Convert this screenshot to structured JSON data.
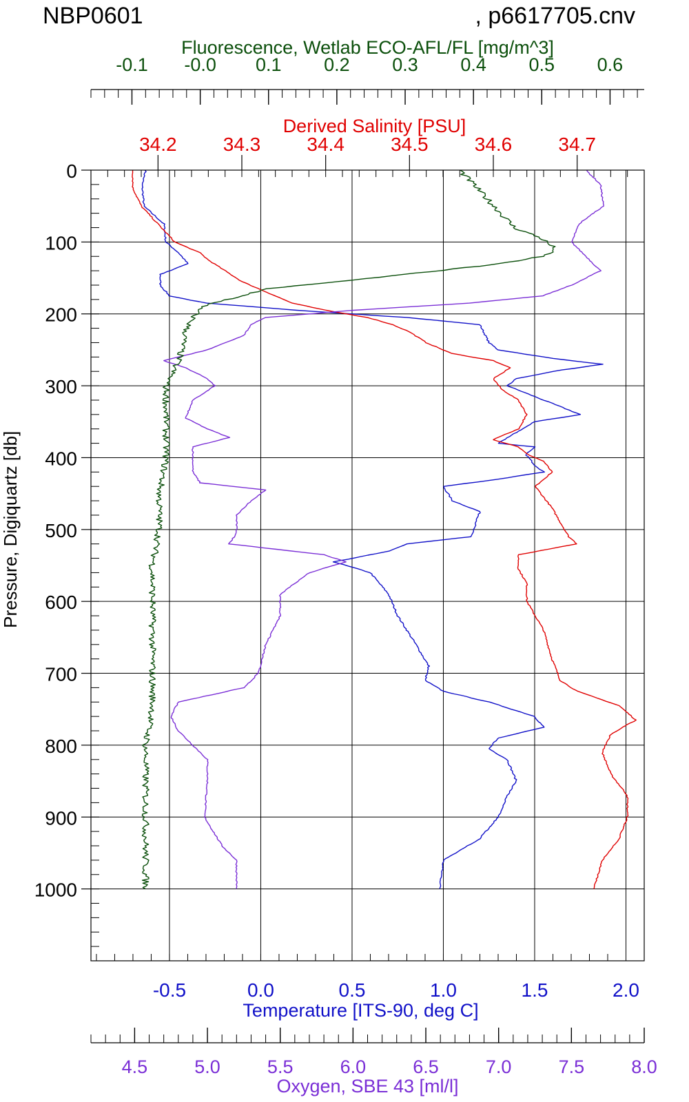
{
  "header": {
    "cast_id": "NBP0601",
    "file_name": ", p6617705.cnv"
  },
  "colors": {
    "temperature": "#1010c8",
    "salinity": "#e00000",
    "oxygen": "#7a2ed6",
    "fluorescence": "#0b4f0b",
    "axis": "#000000"
  },
  "chart_data": {
    "type": "line",
    "grid": true,
    "pressure_axis": {
      "label": "Pressure, Digiquartz [db]",
      "ticks": [
        "0",
        "100",
        "200",
        "300",
        "400",
        "500",
        "600",
        "700",
        "800",
        "900",
        "1000"
      ],
      "range": [
        0,
        1100
      ],
      "reversed": true
    },
    "axes": {
      "fluorescence": {
        "label": "Fluorescence, Wetlab ECO-AFL/FL [mg/m^3]",
        "ticks": [
          "-0.1",
          "-0.0",
          "0.1",
          "0.2",
          "0.3",
          "0.4",
          "0.5",
          "0.6"
        ],
        "tick_values": [
          -0.1,
          0.0,
          0.1,
          0.2,
          0.3,
          0.4,
          0.5,
          0.6
        ],
        "range": [
          -0.16,
          0.65
        ],
        "position": "top"
      },
      "salinity": {
        "label": "Derived Salinity [PSU]",
        "ticks": [
          "34.2",
          "34.3",
          "34.4",
          "34.5",
          "34.6",
          "34.7"
        ],
        "tick_values": [
          34.2,
          34.3,
          34.4,
          34.5,
          34.6,
          34.7
        ],
        "range": [
          34.12,
          34.78
        ],
        "position": "top"
      },
      "temperature": {
        "label": "Temperature [ITS-90, deg C]",
        "ticks": [
          "-0.5",
          "0.0",
          "0.5",
          "1.0",
          "1.5",
          "2.0"
        ],
        "tick_values": [
          -0.5,
          0.0,
          0.5,
          1.0,
          1.5,
          2.0
        ],
        "range": [
          -0.93,
          2.1
        ],
        "position": "bottom"
      },
      "oxygen": {
        "label": "Oxygen, SBE 43 [ml/l]",
        "ticks": [
          "4.5",
          "5.0",
          "5.5",
          "6.0",
          "6.5",
          "7.0",
          "7.5",
          "8.0"
        ],
        "tick_values": [
          4.5,
          5.0,
          5.5,
          6.0,
          6.5,
          7.0,
          7.5,
          8.0
        ],
        "range": [
          4.2,
          8.0
        ],
        "position": "bottom"
      }
    },
    "series": [
      {
        "name": "Temperature [ITS-90, deg C]",
        "axis": "temperature",
        "points": [
          [
            0,
            -0.63
          ],
          [
            20,
            -0.65
          ],
          [
            50,
            -0.64
          ],
          [
            75,
            -0.53
          ],
          [
            100,
            -0.52
          ],
          [
            115,
            -0.45
          ],
          [
            130,
            -0.4
          ],
          [
            145,
            -0.55
          ],
          [
            160,
            -0.55
          ],
          [
            175,
            -0.5
          ],
          [
            185,
            -0.3
          ],
          [
            195,
            0.2
          ],
          [
            205,
            0.8
          ],
          [
            215,
            1.2
          ],
          [
            225,
            1.22
          ],
          [
            240,
            1.25
          ],
          [
            250,
            1.3
          ],
          [
            262,
            1.6
          ],
          [
            270,
            1.87
          ],
          [
            280,
            1.6
          ],
          [
            290,
            1.4
          ],
          [
            300,
            1.35
          ],
          [
            315,
            1.5
          ],
          [
            330,
            1.65
          ],
          [
            340,
            1.75
          ],
          [
            350,
            1.5
          ],
          [
            365,
            1.4
          ],
          [
            380,
            1.3
          ],
          [
            385,
            1.5
          ],
          [
            395,
            1.45
          ],
          [
            410,
            1.5
          ],
          [
            420,
            1.55
          ],
          [
            430,
            1.3
          ],
          [
            440,
            1.0
          ],
          [
            460,
            1.05
          ],
          [
            475,
            1.2
          ],
          [
            490,
            1.18
          ],
          [
            510,
            1.15
          ],
          [
            520,
            0.8
          ],
          [
            530,
            0.7
          ],
          [
            545,
            0.4
          ],
          [
            560,
            0.6
          ],
          [
            590,
            0.7
          ],
          [
            620,
            0.75
          ],
          [
            660,
            0.85
          ],
          [
            690,
            0.92
          ],
          [
            710,
            0.9
          ],
          [
            725,
            1.0
          ],
          [
            740,
            1.25
          ],
          [
            760,
            1.5
          ],
          [
            775,
            1.55
          ],
          [
            790,
            1.3
          ],
          [
            805,
            1.25
          ],
          [
            820,
            1.35
          ],
          [
            850,
            1.4
          ],
          [
            870,
            1.35
          ],
          [
            900,
            1.3
          ],
          [
            930,
            1.2
          ],
          [
            960,
            1.0
          ],
          [
            1000,
            0.98
          ]
        ]
      },
      {
        "name": "Derived Salinity [PSU]",
        "axis": "salinity",
        "points": [
          [
            0,
            34.17
          ],
          [
            25,
            34.17
          ],
          [
            50,
            34.18
          ],
          [
            75,
            34.2
          ],
          [
            100,
            34.22
          ],
          [
            115,
            34.25
          ],
          [
            125,
            34.26
          ],
          [
            140,
            34.28
          ],
          [
            155,
            34.3
          ],
          [
            170,
            34.33
          ],
          [
            185,
            34.36
          ],
          [
            195,
            34.4
          ],
          [
            205,
            34.45
          ],
          [
            215,
            34.48
          ],
          [
            225,
            34.5
          ],
          [
            240,
            34.52
          ],
          [
            255,
            34.55
          ],
          [
            265,
            34.6
          ],
          [
            275,
            34.62
          ],
          [
            290,
            34.6
          ],
          [
            305,
            34.61
          ],
          [
            320,
            34.63
          ],
          [
            340,
            34.64
          ],
          [
            360,
            34.63
          ],
          [
            375,
            34.6
          ],
          [
            385,
            34.63
          ],
          [
            395,
            34.64
          ],
          [
            405,
            34.66
          ],
          [
            420,
            34.67
          ],
          [
            430,
            34.66
          ],
          [
            440,
            34.65
          ],
          [
            455,
            34.66
          ],
          [
            470,
            34.67
          ],
          [
            490,
            34.68
          ],
          [
            510,
            34.69
          ],
          [
            520,
            34.7
          ],
          [
            535,
            34.63
          ],
          [
            555,
            34.63
          ],
          [
            575,
            34.64
          ],
          [
            600,
            34.64
          ],
          [
            640,
            34.66
          ],
          [
            680,
            34.67
          ],
          [
            710,
            34.68
          ],
          [
            725,
            34.7
          ],
          [
            745,
            34.75
          ],
          [
            765,
            34.77
          ],
          [
            785,
            34.74
          ],
          [
            810,
            34.73
          ],
          [
            840,
            34.74
          ],
          [
            870,
            34.76
          ],
          [
            900,
            34.76
          ],
          [
            930,
            34.75
          ],
          [
            960,
            34.73
          ],
          [
            1000,
            34.72
          ]
        ]
      },
      {
        "name": "Oxygen, SBE 43 [ml/l]",
        "axis": "oxygen",
        "points": [
          [
            0,
            7.6
          ],
          [
            20,
            7.7
          ],
          [
            50,
            7.72
          ],
          [
            75,
            7.55
          ],
          [
            100,
            7.5
          ],
          [
            120,
            7.6
          ],
          [
            140,
            7.7
          ],
          [
            160,
            7.5
          ],
          [
            175,
            7.3
          ],
          [
            185,
            6.8
          ],
          [
            195,
            6.0
          ],
          [
            205,
            5.4
          ],
          [
            215,
            5.3
          ],
          [
            230,
            5.25
          ],
          [
            250,
            5.0
          ],
          [
            265,
            4.7
          ],
          [
            275,
            4.85
          ],
          [
            290,
            5.0
          ],
          [
            300,
            5.05
          ],
          [
            320,
            4.9
          ],
          [
            345,
            4.85
          ],
          [
            360,
            5.0
          ],
          [
            372,
            5.15
          ],
          [
            385,
            4.9
          ],
          [
            400,
            4.9
          ],
          [
            420,
            4.9
          ],
          [
            435,
            4.95
          ],
          [
            445,
            5.4
          ],
          [
            460,
            5.3
          ],
          [
            480,
            5.2
          ],
          [
            505,
            5.2
          ],
          [
            520,
            5.15
          ],
          [
            535,
            5.8
          ],
          [
            545,
            5.95
          ],
          [
            560,
            5.7
          ],
          [
            590,
            5.5
          ],
          [
            620,
            5.5
          ],
          [
            660,
            5.4
          ],
          [
            700,
            5.35
          ],
          [
            720,
            5.25
          ],
          [
            740,
            4.8
          ],
          [
            760,
            4.75
          ],
          [
            780,
            4.8
          ],
          [
            800,
            4.9
          ],
          [
            820,
            5.0
          ],
          [
            850,
            5.0
          ],
          [
            900,
            4.98
          ],
          [
            940,
            5.1
          ],
          [
            960,
            5.2
          ],
          [
            1000,
            5.2
          ]
        ]
      },
      {
        "name": "Fluorescence, Wetlab ECO-AFL/FL [mg/m^3]",
        "axis": "fluorescence",
        "points": [
          [
            0,
            0.38
          ],
          [
            20,
            0.4
          ],
          [
            40,
            0.42
          ],
          [
            60,
            0.44
          ],
          [
            80,
            0.46
          ],
          [
            95,
            0.5
          ],
          [
            110,
            0.52
          ],
          [
            120,
            0.5
          ],
          [
            130,
            0.44
          ],
          [
            145,
            0.3
          ],
          [
            155,
            0.2
          ],
          [
            165,
            0.1
          ],
          [
            175,
            0.06
          ],
          [
            190,
            0.0
          ],
          [
            220,
            -0.02
          ],
          [
            260,
            -0.03
          ],
          [
            300,
            -0.05
          ],
          [
            350,
            -0.05
          ],
          [
            400,
            -0.05
          ],
          [
            450,
            -0.06
          ],
          [
            500,
            -0.06
          ],
          [
            550,
            -0.07
          ],
          [
            600,
            -0.07
          ],
          [
            650,
            -0.07
          ],
          [
            700,
            -0.07
          ],
          [
            750,
            -0.07
          ],
          [
            800,
            -0.08
          ],
          [
            850,
            -0.08
          ],
          [
            900,
            -0.08
          ],
          [
            950,
            -0.08
          ],
          [
            1000,
            -0.08
          ]
        ]
      }
    ]
  }
}
